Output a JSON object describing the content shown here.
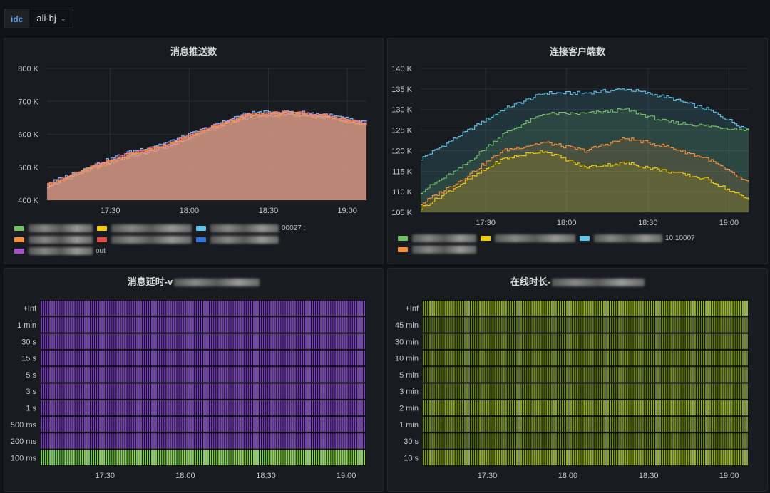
{
  "variables": {
    "label": "idc",
    "value": "ali-bj"
  },
  "time_labels": [
    "17:30",
    "18:00",
    "18:30",
    "19:00"
  ],
  "panels": {
    "push": {
      "title": "消息推送数",
      "chart_data": {
        "type": "line",
        "title": "消息推送数",
        "x": [
          "17:15",
          "17:30",
          "17:45",
          "18:00",
          "18:15",
          "18:30",
          "18:45",
          "19:00",
          "19:07"
        ],
        "yticks": [
          "800 K",
          "700 K",
          "600 K",
          "500 K",
          "400 K"
        ],
        "ylim": [
          400,
          800
        ],
        "series": [
          {
            "color": "#73bf69",
            "values": [
              440,
              490,
              530,
              560,
              610,
              650,
              660,
              650,
              630
            ]
          },
          {
            "color": "#f2cc0c",
            "values": [
              445,
              493,
              535,
              565,
              612,
              655,
              662,
              652,
              628
            ]
          },
          {
            "color": "#8ab8ff",
            "values": [
              450,
              500,
              545,
              575,
              620,
              665,
              670,
              660,
              635
            ]
          },
          {
            "color": "#ff7383",
            "values": [
              448,
              496,
              540,
              570,
              618,
              660,
              668,
              656,
              632
            ]
          },
          {
            "color": "#ca95e5",
            "values": [
              442,
              492,
              532,
              562,
              614,
              656,
              664,
              654,
              630
            ]
          },
          {
            "color": "#f58f3a",
            "values": [
              446,
              494,
              536,
              566,
              616,
              658,
              666,
              655,
              631
            ]
          }
        ]
      },
      "legend_rows": [
        {
          "swatches": [
            "#73bf69",
            "#f2cc0c",
            "#5ec4e8"
          ],
          "text": "00027 :"
        },
        {
          "swatches": [
            "#f58f3a",
            "#e24d42",
            "#3274d9"
          ],
          "text": ""
        },
        {
          "swatches": [
            "#a352cc"
          ],
          "text": "out"
        }
      ]
    },
    "clients": {
      "title": "连接客户端数",
      "chart_data": {
        "type": "area",
        "title": "连接客户端数",
        "x": [
          "17:15",
          "17:30",
          "17:45",
          "18:00",
          "18:15",
          "18:30",
          "18:45",
          "19:00",
          "19:07"
        ],
        "yticks": [
          "140 K",
          "135 K",
          "130 K",
          "125 K",
          "120 K",
          "115 K",
          "110 K",
          "105 K"
        ],
        "ylim": [
          105,
          140
        ],
        "series": [
          {
            "color": "#5ec4e8",
            "values": [
              118,
              124,
              130,
              134,
              134,
              135,
              133,
              130,
              125
            ]
          },
          {
            "color": "#73bf69",
            "values": [
              110,
              116,
              124,
              129,
              129,
              130,
              127,
              126,
              125
            ]
          },
          {
            "color": "#f58f3a",
            "values": [
              107,
              113,
              120,
              122,
              120,
              123,
              121,
              118,
              112
            ]
          },
          {
            "color": "#f2cc0c",
            "values": [
              106,
              112,
              118,
              120,
              116,
              117,
              115,
              113,
              108
            ]
          }
        ]
      },
      "legend_rows": [
        {
          "swatches": [
            "#73bf69",
            "#f2cc0c",
            "#5ec4e8"
          ],
          "text": "10.10007"
        },
        {
          "swatches": [
            "#f58f3a"
          ],
          "text": ""
        }
      ]
    },
    "latency": {
      "title": "消息延时-v",
      "chart_data": {
        "type": "heatmap",
        "title": "消息延时",
        "x": [
          "17:15",
          "17:30",
          "18:00",
          "18:30",
          "19:00",
          "19:07"
        ],
        "buckets": [
          "+Inf",
          "1 min",
          "30 s",
          "15 s",
          "5 s",
          "3 s",
          "1 s",
          "500 ms",
          "200 ms",
          "100 ms"
        ],
        "intensity": [
          0.15,
          0.15,
          0.15,
          0.15,
          0.15,
          0.15,
          0.15,
          0.15,
          0.15,
          0.95
        ]
      }
    },
    "online": {
      "title": "在线时长-",
      "chart_data": {
        "type": "heatmap",
        "title": "在线时长",
        "x": [
          "17:15",
          "17:30",
          "18:00",
          "18:30",
          "19:00",
          "19:07"
        ],
        "buckets": [
          "+Inf",
          "45 min",
          "30 min",
          "10 min",
          "5 min",
          "3 min",
          "2 min",
          "1 min",
          "30 s",
          "10 s"
        ],
        "intensity": [
          0.6,
          0.25,
          0.3,
          0.35,
          0.3,
          0.3,
          0.55,
          0.35,
          0.25,
          0.6
        ]
      }
    }
  },
  "colors": {
    "grid": "#2a2d33",
    "axis_text": "#c7c7d0"
  }
}
